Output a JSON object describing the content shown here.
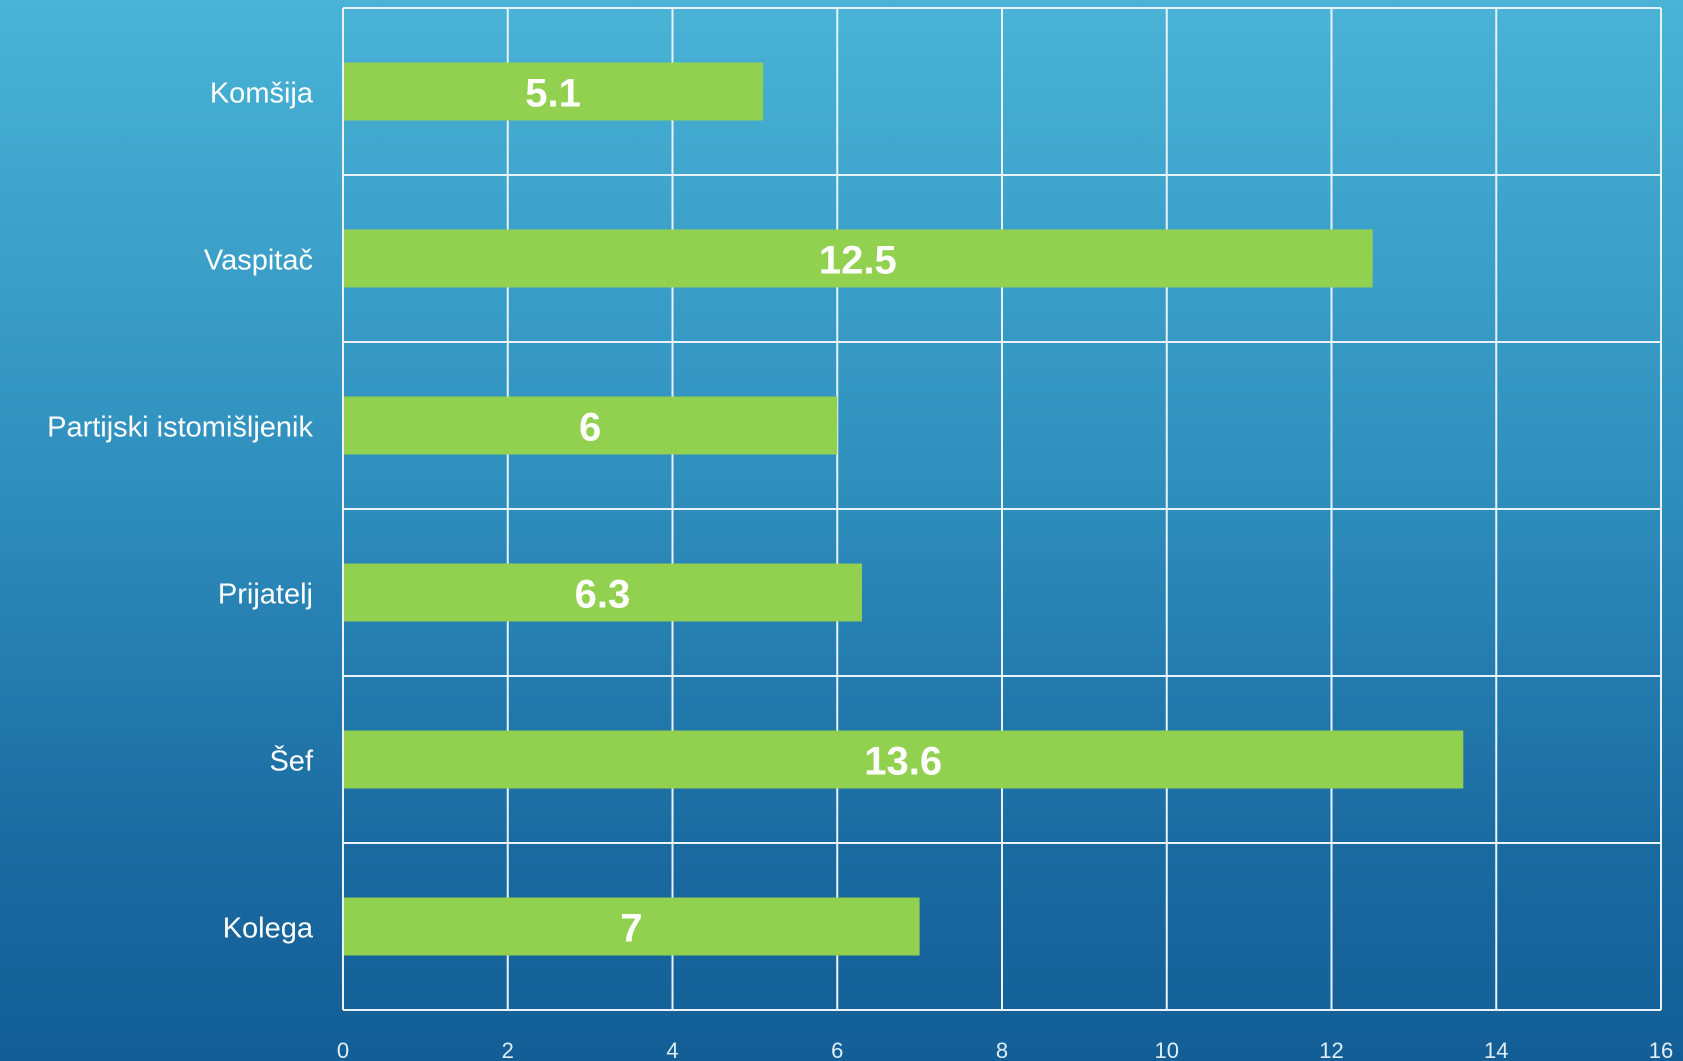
{
  "chart_data": {
    "type": "bar",
    "orientation": "horizontal",
    "categories": [
      "Komšija",
      "Vaspitač",
      "Partijski istomišljenik",
      "Prijatelj",
      "Šef",
      "Kolega"
    ],
    "values": [
      5.1,
      12.5,
      6,
      6.3,
      13.6,
      7
    ],
    "data_labels": [
      "5.1",
      "12.5",
      "6",
      "6.3",
      "13.6",
      "7"
    ],
    "x_ticks": [
      "0",
      "2",
      "4",
      "6",
      "8",
      "10",
      "12",
      "14",
      "16"
    ],
    "xlim": [
      0,
      16
    ],
    "grid": true,
    "legend": "none",
    "title": "",
    "xlabel": "",
    "ylabel": "",
    "colors": {
      "bar": "#92d050",
      "grid": "#e8f2f8",
      "label_text": "#ffffff",
      "tick_text": "#e0eef6"
    }
  }
}
